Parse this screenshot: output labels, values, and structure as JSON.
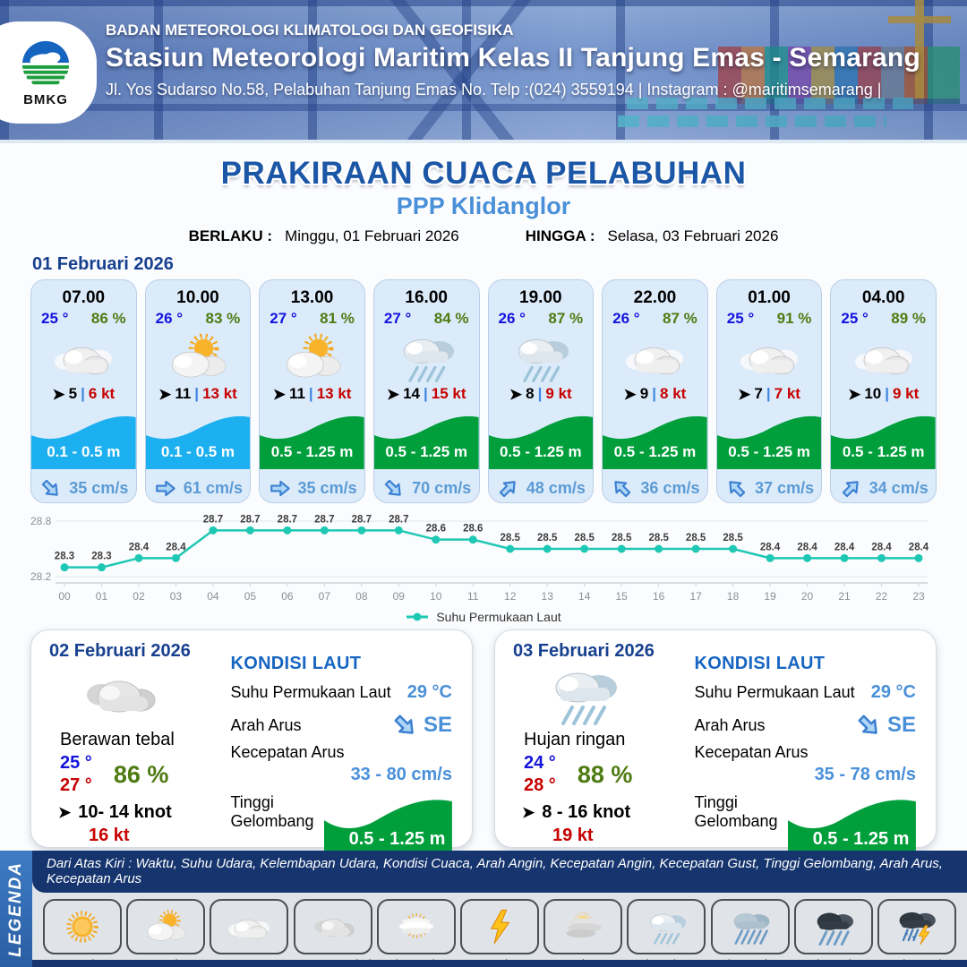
{
  "header": {
    "org": "BADAN METEOROLOGI KLIMATOLOGI DAN GEOFISIKA",
    "station": "Stasiun Meteorologi Maritim Kelas II Tanjung Emas - Semarang",
    "address": "Jl. Yos Sudarso No.58, Pelabuhan Tanjung Emas No. Telp :(024) 3559194 | Instagram : @maritimsemarang |",
    "logo_text": "BMKG"
  },
  "title": {
    "main": "PRAKIRAAN CUACA PELABUHAN",
    "subtitle": "PPP Klidanglor",
    "berlaku_label": "BERLAKU :",
    "berlaku_value": "Minggu, 01 Februari 2026",
    "hingga_label": "HINGGA :",
    "hingga_value": "Selasa, 03 Februari 2026"
  },
  "strings": {
    "wind_sep": "|"
  },
  "day1": {
    "date_label": "01 Februari 2026",
    "cards": [
      {
        "time": "07.00",
        "temp": "25 °",
        "humidity": "86 %",
        "icon": "berawan",
        "wind": "5",
        "gust": "6 kt",
        "wave": "0.1 - 0.5 m",
        "wave_color_hex": "#1db0f0",
        "current_dir": "se",
        "current": "35 cm/s"
      },
      {
        "time": "10.00",
        "temp": "26 °",
        "humidity": "83 %",
        "icon": "cerah-berawan",
        "wind": "11",
        "gust": "13 kt",
        "wave": "0.1 - 0.5 m",
        "wave_color_hex": "#1db0f0",
        "current_dir": "e",
        "current": "61 cm/s"
      },
      {
        "time": "13.00",
        "temp": "27 °",
        "humidity": "81 %",
        "icon": "cerah-berawan",
        "wind": "11",
        "gust": "13 kt",
        "wave": "0.5 - 1.25 m",
        "wave_color_hex": "#009f3c",
        "current_dir": "e",
        "current": "35 cm/s"
      },
      {
        "time": "16.00",
        "temp": "27 °",
        "humidity": "84 %",
        "icon": "hujan-ringan",
        "wind": "14",
        "gust": "15 kt",
        "wave": "0.5 - 1.25 m",
        "wave_color_hex": "#009f3c",
        "current_dir": "se",
        "current": "70 cm/s"
      },
      {
        "time": "19.00",
        "temp": "26 °",
        "humidity": "87 %",
        "icon": "hujan-ringan",
        "wind": "8",
        "gust": "9 kt",
        "wave": "0.5 - 1.25 m",
        "wave_color_hex": "#009f3c",
        "current_dir": "ne",
        "current": "48 cm/s"
      },
      {
        "time": "22.00",
        "temp": "26 °",
        "humidity": "87 %",
        "icon": "berawan",
        "wind": "9",
        "gust": "8 kt",
        "wave": "0.5 - 1.25 m",
        "wave_color_hex": "#009f3c",
        "current_dir": "nw",
        "current": "36 cm/s"
      },
      {
        "time": "01.00",
        "temp": "25 °",
        "humidity": "91 %",
        "icon": "berawan",
        "wind": "7",
        "gust": "7 kt",
        "wave": "0.5 - 1.25 m",
        "wave_color_hex": "#009f3c",
        "current_dir": "nw",
        "current": "37 cm/s"
      },
      {
        "time": "04.00",
        "temp": "25 °",
        "humidity": "89 %",
        "icon": "berawan",
        "wind": "10",
        "gust": "9 kt",
        "wave": "0.5 - 1.25 m",
        "wave_color_hex": "#009f3c",
        "current_dir": "ne",
        "current": "34 cm/s"
      }
    ]
  },
  "chart_data": {
    "type": "line",
    "x": [
      "00",
      "01",
      "02",
      "03",
      "04",
      "05",
      "06",
      "07",
      "08",
      "09",
      "10",
      "11",
      "12",
      "13",
      "14",
      "15",
      "16",
      "17",
      "18",
      "19",
      "20",
      "21",
      "22",
      "23"
    ],
    "values": [
      28.3,
      28.3,
      28.4,
      28.4,
      28.7,
      28.7,
      28.7,
      28.7,
      28.7,
      28.7,
      28.6,
      28.6,
      28.5,
      28.5,
      28.5,
      28.5,
      28.5,
      28.5,
      28.5,
      28.4,
      28.4,
      28.4,
      28.4,
      28.4
    ],
    "legend_label": "Suhu Permukaan Laut",
    "ylim": [
      28.2,
      28.8
    ],
    "line_color": "#1fc8b4",
    "grid": true,
    "legend_position": "bottom"
  },
  "days": [
    {
      "date": "02 Februari 2026",
      "icon": "berawan-tebal",
      "condition": "Berawan tebal",
      "temp_min": "25 °",
      "temp_max": "27 °",
      "humidity": "86 %",
      "wind": "10- 14 knot",
      "gust": "16 kt",
      "sea": {
        "title": "KONDISI LAUT",
        "sst_label": "Suhu Permukaan Laut",
        "sst_value": "29 °C",
        "dir_label": "Arah Arus",
        "dir_value": "SE",
        "dir_code": "se",
        "speed_label": "Kecepatan Arus",
        "speed_value": "33 - 80 cm/s",
        "wave_label": "Tinggi Gelombang",
        "wave_value": "0.5 - 1.25 m",
        "wave_color_hex": "#009f3c"
      }
    },
    {
      "date": "03 Februari 2026",
      "icon": "hujan-ringan",
      "condition": "Hujan ringan",
      "temp_min": "24 °",
      "temp_max": "28 °",
      "humidity": "88 %",
      "wind": "8 - 16 knot",
      "gust": "19 kt",
      "sea": {
        "title": "KONDISI LAUT",
        "sst_label": "Suhu Permukaan Laut",
        "sst_value": "29 °C",
        "dir_label": "Arah Arus",
        "dir_value": "SE",
        "dir_code": "se",
        "speed_label": "Kecepatan Arus",
        "speed_value": "35 - 78 cm/s",
        "wave_label": "Tinggi Gelombang",
        "wave_value": "0.5 - 1.25 m",
        "wave_color_hex": "#009f3c"
      }
    }
  ],
  "legend": {
    "title": "LEGENDA",
    "note": "Dari Atas Kiri : Waktu, Suhu Udara, Kelembapan Udara, Kondisi Cuaca, Arah Angin, Kecepatan Angin, Kecepatan Gust, Tinggi Gelombang, Arah Arus, Kecepatan Arus",
    "items": [
      {
        "label": "Cerah",
        "icon": "cerah"
      },
      {
        "label": "Cerah Berawan",
        "icon": "cerah-berawan"
      },
      {
        "label": "Berawan",
        "icon": "berawan"
      },
      {
        "label": "Berawan Tebal",
        "icon": "berawan-tebal"
      },
      {
        "label": "Udara Kabur",
        "icon": "udara-kabur"
      },
      {
        "label": "Petir",
        "icon": "petir"
      },
      {
        "label": "Kabut",
        "icon": "kabut"
      },
      {
        "label": "Hujan Ringan",
        "icon": "hujan-ringan"
      },
      {
        "label": "Hujan Sedang",
        "icon": "hujan-sedang"
      },
      {
        "label": "Hujan Lebat",
        "icon": "hujan-lebat"
      },
      {
        "label": "Hujan Petir",
        "icon": "hujan-petir"
      }
    ]
  }
}
